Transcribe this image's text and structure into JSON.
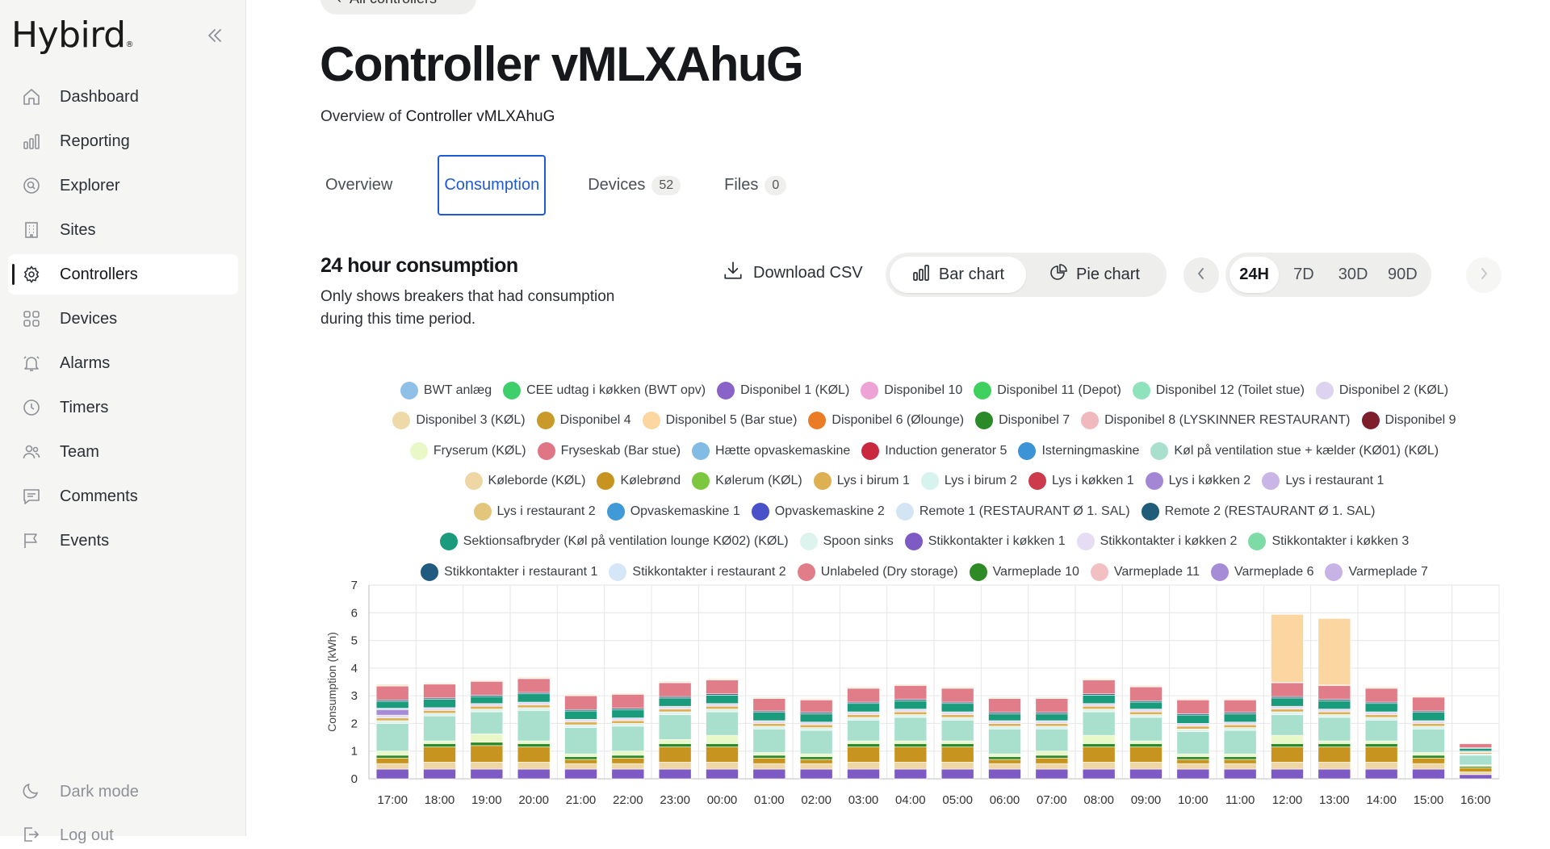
{
  "app": {
    "logo": "Hybird",
    "logo_mark": "®"
  },
  "sidebar": {
    "items": [
      {
        "label": "Dashboard",
        "icon": "home-icon"
      },
      {
        "label": "Reporting",
        "icon": "bar-chart-icon"
      },
      {
        "label": "Explorer",
        "icon": "explorer-icon"
      },
      {
        "label": "Sites",
        "icon": "building-icon"
      },
      {
        "label": "Controllers",
        "icon": "gear-icon",
        "active": true
      },
      {
        "label": "Devices",
        "icon": "grid-icon"
      },
      {
        "label": "Alarms",
        "icon": "bell-icon"
      },
      {
        "label": "Timers",
        "icon": "clock-icon"
      },
      {
        "label": "Team",
        "icon": "users-icon"
      },
      {
        "label": "Comments",
        "icon": "comment-icon"
      },
      {
        "label": "Events",
        "icon": "flag-icon"
      }
    ],
    "dark_mode": "Dark mode",
    "logout": "Log out"
  },
  "header": {
    "back_label": "All controllers",
    "title": "Controller vMLXAhuG",
    "subtitle_prefix": "Overview of",
    "subtitle_name": "Controller vMLXAhuG"
  },
  "tabs": [
    {
      "label": "Overview"
    },
    {
      "label": "Consumption",
      "active": true
    },
    {
      "label": "Devices",
      "count": "52"
    },
    {
      "label": "Files",
      "count": "0"
    }
  ],
  "section": {
    "title": "24 hour consumption",
    "description": "Only shows breakers that had consumption during this time period."
  },
  "controls": {
    "download": "Download CSV",
    "bar_chart": "Bar chart",
    "pie_chart": "Pie chart",
    "ranges": [
      "24H",
      "7D",
      "30D",
      "90D"
    ],
    "selected_range": "24H"
  },
  "legend": [
    {
      "label": "BWT anlæg",
      "color": "#8ec0e8"
    },
    {
      "label": "CEE udtag i køkken (BWT opv)",
      "color": "#3fcf6a"
    },
    {
      "label": "Disponibel 1 (KØL)",
      "color": "#8a63c9"
    },
    {
      "label": "Disponibel 10",
      "color": "#eda3d6"
    },
    {
      "label": "Disponibel 11 (Depot)",
      "color": "#3ed160"
    },
    {
      "label": "Disponibel 12 (Toilet stue)",
      "color": "#8ee3bd"
    },
    {
      "label": "Disponibel 2 (KØL)",
      "color": "#ddd3f0"
    },
    {
      "label": "Disponibel 3 (KØL)",
      "color": "#eed9a8"
    },
    {
      "label": "Disponibel 4",
      "color": "#c99a2a"
    },
    {
      "label": "Disponibel 5 (Bar stue)",
      "color": "#fbd6a0"
    },
    {
      "label": "Disponibel 6 (Ølounge)",
      "color": "#ec7b26"
    },
    {
      "label": "Disponibel 7",
      "color": "#2a8a27"
    },
    {
      "label": "Disponibel 8 (LYSKINNER RESTAURANT)",
      "color": "#f0b9bd"
    },
    {
      "label": "Disponibel 9",
      "color": "#7e1d2c"
    },
    {
      "label": "Fryserum (KØL)",
      "color": "#e8f9c7"
    },
    {
      "label": "Fryseskab (Bar stue)",
      "color": "#df7585"
    },
    {
      "label": "Hætte opvaskemaskine",
      "color": "#82bbe3"
    },
    {
      "label": "Induction generator 5",
      "color": "#c9283f"
    },
    {
      "label": "Isterningmaskine",
      "color": "#3c93d6"
    },
    {
      "label": "Køl på ventilation stue + kælder (KØ01) (KØL)",
      "color": "#a9e0cd"
    },
    {
      "label": "Køleborde (KØL)",
      "color": "#eed7a4"
    },
    {
      "label": "Kølebrønd",
      "color": "#c89420"
    },
    {
      "label": "Kølerum (KØL)",
      "color": "#7cc640"
    },
    {
      "label": "Lys i birum 1",
      "color": "#ddb052"
    },
    {
      "label": "Lys i birum 2",
      "color": "#d6f3ee"
    },
    {
      "label": "Lys i køkken 1",
      "color": "#cc3a4b"
    },
    {
      "label": "Lys i køkken 2",
      "color": "#a487d4"
    },
    {
      "label": "Lys i restaurant 1",
      "color": "#c9b5e6"
    },
    {
      "label": "Lys i restaurant 2",
      "color": "#e3c67b"
    },
    {
      "label": "Opvaskemaskine 1",
      "color": "#419ad8"
    },
    {
      "label": "Opvaskemaskine 2",
      "color": "#4b52c9"
    },
    {
      "label": "Remote 1 (RESTAURANT Ø 1. SAL)",
      "color": "#d3e5f5"
    },
    {
      "label": "Remote 2 (RESTAURANT Ø 1. SAL)",
      "color": "#1e5c7a"
    },
    {
      "label": "Sektionsafbryder (Køl på ventilation lounge KØ02) (KØL)",
      "color": "#1a9b7c"
    },
    {
      "label": "Spoon sinks",
      "color": "#dcf3ee"
    },
    {
      "label": "Stikkontakter i køkken 1",
      "color": "#7d5ac4"
    },
    {
      "label": "Stikkontakter i køkken 2",
      "color": "#e6dcf3"
    },
    {
      "label": "Stikkontakter i køkken 3",
      "color": "#7fdba6"
    },
    {
      "label": "Stikkontakter i restaurant 1",
      "color": "#215c80"
    },
    {
      "label": "Stikkontakter i restaurant 2",
      "color": "#d5e6f6"
    },
    {
      "label": "Unlabeled (Dry storage)",
      "color": "#e17d88"
    },
    {
      "label": "Varmeplade 10",
      "color": "#2d8a24"
    },
    {
      "label": "Varmeplade 11",
      "color": "#f2bfc2"
    },
    {
      "label": "Varmeplade 6",
      "color": "#a68bd6"
    },
    {
      "label": "Varmeplade 7",
      "color": "#c7b3e5"
    }
  ],
  "legend_rows": [
    7,
    7,
    6,
    8,
    5,
    5,
    7
  ],
  "chart_data": {
    "type": "bar",
    "stacked": true,
    "ylabel": "Consumption (kWh)",
    "ylim": [
      0,
      7
    ],
    "yticks": [
      0,
      1,
      2,
      3,
      4,
      5,
      6,
      7
    ],
    "grid": true,
    "categories": [
      "17:00",
      "18:00",
      "19:00",
      "20:00",
      "21:00",
      "22:00",
      "23:00",
      "00:00",
      "01:00",
      "02:00",
      "03:00",
      "04:00",
      "05:00",
      "06:00",
      "07:00",
      "08:00",
      "09:00",
      "10:00",
      "11:00",
      "12:00",
      "13:00",
      "14:00",
      "15:00",
      "16:00"
    ],
    "series": [
      {
        "name": "Stikkontakter i køkken 1",
        "color": "#7d5ac4",
        "values": [
          0.35,
          0.35,
          0.35,
          0.35,
          0.35,
          0.35,
          0.35,
          0.35,
          0.35,
          0.35,
          0.35,
          0.35,
          0.35,
          0.35,
          0.35,
          0.35,
          0.35,
          0.35,
          0.35,
          0.35,
          0.35,
          0.35,
          0.35,
          0.15
        ]
      },
      {
        "name": "Køleborde (KØL)",
        "color": "#eed7a4",
        "values": [
          0.2,
          0.25,
          0.25,
          0.25,
          0.2,
          0.2,
          0.25,
          0.25,
          0.2,
          0.2,
          0.25,
          0.25,
          0.25,
          0.2,
          0.2,
          0.25,
          0.25,
          0.2,
          0.2,
          0.25,
          0.25,
          0.25,
          0.2,
          0.1
        ]
      },
      {
        "name": "Kølebrønd",
        "color": "#c89420",
        "values": [
          0.2,
          0.55,
          0.6,
          0.55,
          0.15,
          0.2,
          0.55,
          0.55,
          0.2,
          0.15,
          0.55,
          0.55,
          0.55,
          0.15,
          0.2,
          0.55,
          0.55,
          0.15,
          0.15,
          0.55,
          0.55,
          0.55,
          0.2,
          0.15
        ]
      },
      {
        "name": "Varmeplade 10",
        "color": "#2d8a24",
        "values": [
          0.1,
          0.12,
          0.12,
          0.12,
          0.1,
          0.1,
          0.12,
          0.12,
          0.1,
          0.1,
          0.12,
          0.12,
          0.12,
          0.1,
          0.1,
          0.12,
          0.12,
          0.1,
          0.1,
          0.12,
          0.12,
          0.12,
          0.1,
          0.05
        ]
      },
      {
        "name": "Fryserum (KØL)",
        "color": "#e8f9c7",
        "values": [
          0.15,
          0.1,
          0.3,
          0.1,
          0.1,
          0.15,
          0.15,
          0.3,
          0.1,
          0.1,
          0.1,
          0.1,
          0.1,
          0.1,
          0.15,
          0.3,
          0.1,
          0.1,
          0.1,
          0.3,
          0.1,
          0.1,
          0.1,
          0.05
        ]
      },
      {
        "name": "Køl på ventilation stue + kælder (KØ01) (KØL)",
        "color": "#a9e0cd",
        "values": [
          1.0,
          0.9,
          0.8,
          1.1,
          0.95,
          0.9,
          0.9,
          0.85,
          0.85,
          0.85,
          0.75,
          0.85,
          0.75,
          0.9,
          0.8,
          0.85,
          0.85,
          0.8,
          0.85,
          0.75,
          0.85,
          0.75,
          0.85,
          0.35
        ]
      },
      {
        "name": "Spoon sinks",
        "color": "#dcf3ee",
        "values": [
          0.1,
          0.1,
          0.1,
          0.1,
          0.1,
          0.1,
          0.1,
          0.1,
          0.1,
          0.1,
          0.1,
          0.1,
          0.1,
          0.1,
          0.1,
          0.1,
          0.1,
          0.1,
          0.1,
          0.1,
          0.1,
          0.1,
          0.1,
          0.05
        ]
      },
      {
        "name": "Lys i birum 1",
        "color": "#ddb052",
        "values": [
          0.1,
          0.1,
          0.1,
          0.1,
          0.1,
          0.1,
          0.1,
          0.1,
          0.1,
          0.1,
          0.1,
          0.1,
          0.1,
          0.1,
          0.1,
          0.1,
          0.1,
          0.1,
          0.1,
          0.1,
          0.1,
          0.1,
          0.1,
          0.05
        ]
      },
      {
        "name": "Stikkontakter i køkken 2",
        "color": "#e6dcf3",
        "values": [
          0.1,
          0.1,
          0.1,
          0.1,
          0.1,
          0.1,
          0.1,
          0.1,
          0.1,
          0.1,
          0.1,
          0.1,
          0.1,
          0.1,
          0.1,
          0.1,
          0.1,
          0.1,
          0.1,
          0.1,
          0.1,
          0.1,
          0.1,
          0.05
        ]
      },
      {
        "name": "Varmeplade 6",
        "color": "#a68bd6",
        "values": [
          0.2,
          0,
          0,
          0,
          0,
          0,
          0,
          0,
          0,
          0,
          0,
          0,
          0,
          0,
          0,
          0,
          0,
          0,
          0,
          0,
          0,
          0,
          0,
          0
        ]
      },
      {
        "name": "Stikkontakter i restaurant 2",
        "color": "#d5e6f6",
        "values": [
          0.05,
          0,
          0,
          0,
          0,
          0,
          0,
          0,
          0,
          0,
          0,
          0,
          0,
          0,
          0,
          0,
          0,
          0,
          0,
          0,
          0,
          0,
          0,
          0
        ]
      },
      {
        "name": "Sektionsafbryder (Køl på ventilation lounge KØ02) (KØL)",
        "color": "#1a9b7c",
        "values": [
          0.25,
          0.3,
          0.25,
          0.3,
          0.3,
          0.3,
          0.3,
          0.3,
          0.3,
          0.3,
          0.3,
          0.3,
          0.3,
          0.25,
          0.25,
          0.3,
          0.25,
          0.3,
          0.3,
          0.3,
          0.3,
          0.3,
          0.3,
          0.1
        ]
      },
      {
        "name": "Remote 2 (RESTAURANT Ø 1. SAL)",
        "color": "#1e5c7a",
        "values": [
          0.05,
          0.05,
          0.05,
          0.05,
          0.05,
          0.05,
          0.05,
          0.05,
          0.05,
          0.05,
          0.05,
          0.05,
          0.05,
          0.05,
          0.05,
          0.05,
          0.05,
          0.05,
          0.05,
          0.05,
          0.05,
          0.05,
          0.05,
          0.02
        ]
      },
      {
        "name": "Unlabeled (Dry storage)",
        "color": "#e17d88",
        "values": [
          0.5,
          0.5,
          0.5,
          0.5,
          0.5,
          0.5,
          0.5,
          0.5,
          0.45,
          0.45,
          0.5,
          0.5,
          0.5,
          0.5,
          0.5,
          0.5,
          0.5,
          0.5,
          0.45,
          0.5,
          0.5,
          0.5,
          0.5,
          0.15
        ]
      },
      {
        "name": "Disponibel 6 (Ølounge)",
        "color": "#ec7b26",
        "values": [
          0.02,
          0.02,
          0.02,
          0.02,
          0.02,
          0.02,
          0.02,
          0.02,
          0.02,
          0.02,
          0.02,
          0.02,
          0.02,
          0.02,
          0.02,
          0.02,
          0.02,
          0.02,
          0.02,
          0.02,
          0.02,
          0.02,
          0.02,
          0.01
        ]
      },
      {
        "name": "Disponibel 5 (Bar stue)",
        "color": "#fbd6a0",
        "values": [
          0.04,
          0.03,
          0.03,
          0.03,
          0.03,
          0.03,
          0.03,
          0.03,
          0.03,
          0.03,
          0.03,
          0.03,
          0.03,
          0.03,
          0.03,
          0.03,
          0.03,
          0.03,
          0.03,
          2.45,
          2.4,
          0.03,
          0.03,
          0.02
        ]
      }
    ]
  }
}
